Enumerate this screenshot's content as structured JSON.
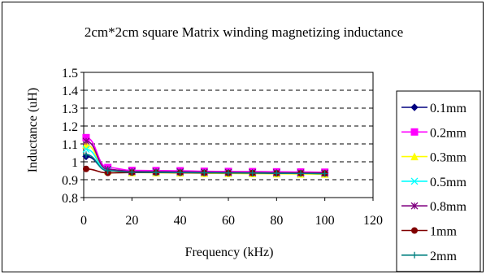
{
  "chart_data": {
    "type": "line",
    "title": "2cm*2cm square Matrix winding magnetizing inductance",
    "xlabel": "Frequency (kHz)",
    "ylabel": "Inductance (uH)",
    "xlim": [
      0,
      120
    ],
    "ylim": [
      0.8,
      1.5
    ],
    "xticks": [
      0,
      20,
      40,
      60,
      80,
      100,
      120
    ],
    "yticks": [
      0.8,
      0.9,
      1,
      1.1,
      1.2,
      1.3,
      1.4,
      1.5
    ],
    "x_tick_labels": [
      "0",
      "20",
      "40",
      "60",
      "80",
      "100",
      "120"
    ],
    "y_tick_labels": [
      "0.8",
      "0.9",
      "1",
      "1.1",
      "1.2",
      "1.3",
      "1.4",
      "1.5"
    ],
    "grid": "horizontal-dashed",
    "legend_position": "right",
    "x": [
      1,
      10,
      20,
      30,
      40,
      50,
      60,
      70,
      80,
      90,
      100
    ],
    "series": [
      {
        "name": "0.1mm",
        "color": "#000080",
        "marker": "diamond",
        "values": [
          1.03,
          0.955,
          0.948,
          0.947,
          0.946,
          0.945,
          0.944,
          0.943,
          0.942,
          0.941,
          0.94
        ]
      },
      {
        "name": "0.2mm",
        "color": "#ff00ff",
        "marker": "square",
        "values": [
          1.135,
          0.968,
          0.952,
          0.951,
          0.95,
          0.947,
          0.946,
          0.945,
          0.944,
          0.943,
          0.942
        ]
      },
      {
        "name": "0.3mm",
        "color": "#ffff00",
        "marker": "triangle",
        "values": [
          1.095,
          0.95,
          0.94,
          0.939,
          0.938,
          0.936,
          0.935,
          0.934,
          0.933,
          0.932,
          0.931
        ]
      },
      {
        "name": "0.5mm",
        "color": "#00ffff",
        "marker": "x",
        "values": [
          1.07,
          0.952,
          0.944,
          0.943,
          0.942,
          0.94,
          0.939,
          0.938,
          0.937,
          0.936,
          0.935
        ]
      },
      {
        "name": "0.8mm",
        "color": "#800080",
        "marker": "asterisk",
        "values": [
          1.115,
          0.958,
          0.946,
          0.945,
          0.944,
          0.942,
          0.941,
          0.94,
          0.939,
          0.938,
          0.937
        ]
      },
      {
        "name": "1mm",
        "color": "#800000",
        "marker": "circle",
        "values": [
          0.96,
          0.938,
          0.94,
          0.94,
          0.939,
          0.938,
          0.937,
          0.937,
          0.936,
          0.936,
          0.935
        ]
      },
      {
        "name": "2mm",
        "color": "#008080",
        "marker": "plus",
        "values": [
          1.04,
          0.95,
          0.942,
          0.941,
          0.94,
          0.939,
          0.938,
          0.937,
          0.936,
          0.935,
          0.934
        ]
      }
    ]
  }
}
